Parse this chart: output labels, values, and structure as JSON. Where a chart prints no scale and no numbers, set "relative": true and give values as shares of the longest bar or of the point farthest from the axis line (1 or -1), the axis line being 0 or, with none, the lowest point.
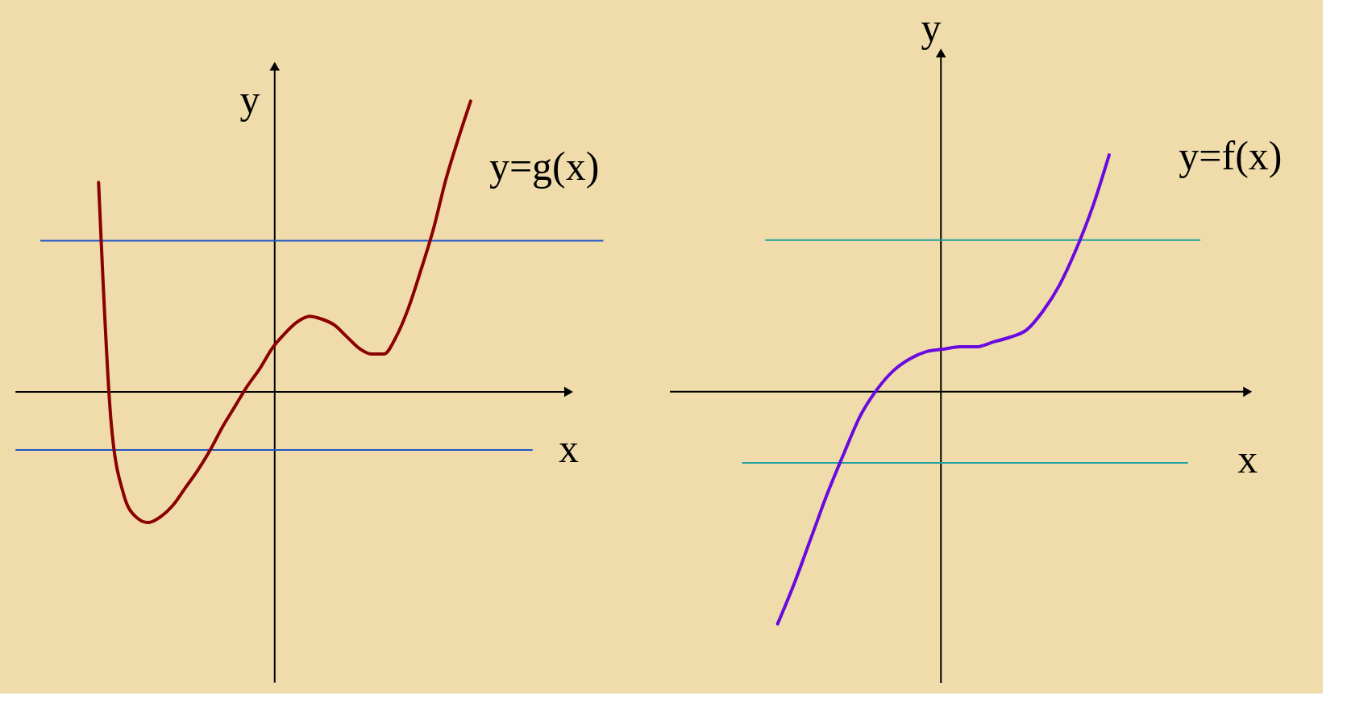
{
  "chart_data": [
    {
      "type": "line",
      "relative": true,
      "xlabel": "x",
      "ylabel": "y",
      "categories": [
        null,
        null,
        null,
        null,
        null,
        null,
        null,
        null,
        null,
        null,
        null,
        null,
        null,
        null,
        null,
        null,
        null,
        null,
        null,
        null,
        null,
        null,
        null,
        null,
        null,
        null,
        null,
        null,
        null,
        null,
        null
      ],
      "series": [
        {
          "name": "y=g(x)",
          "color": "#8b0000",
          "values": [
            0.72,
            -0.1,
            -0.35,
            -0.43,
            -0.45,
            -0.43,
            -0.39,
            -0.33,
            -0.27,
            -0.2,
            -0.12,
            -0.05,
            0.02,
            0.08,
            0.15,
            0.2,
            0.24,
            0.26,
            0.25,
            0.23,
            0.19,
            0.15,
            0.13,
            0.13,
            0.19,
            0.29,
            0.42,
            0.56,
            0.73,
            0.87,
            1
          ]
        }
      ],
      "ref_lines": [
        {
          "axis": "y",
          "value": 0.52,
          "color": "#1f55c8"
        },
        {
          "axis": "y",
          "value": -0.2,
          "color": "#1f55c8"
        }
      ]
    },
    {
      "type": "line",
      "relative": true,
      "xlabel": "x",
      "ylabel": "y",
      "categories": [
        null,
        null,
        null,
        null,
        null,
        null,
        null,
        null,
        null,
        null,
        null,
        null,
        null,
        null,
        null,
        null,
        null,
        null,
        null,
        null,
        null
      ],
      "series": [
        {
          "name": "y=f(x)",
          "color": "#6a0adf",
          "values": [
            -0.98,
            -0.81,
            -0.62,
            -0.43,
            -0.26,
            -0.1,
            0.01,
            0.09,
            0.14,
            0.17,
            0.18,
            0.19,
            0.19,
            0.21,
            0.23,
            0.26,
            0.34,
            0.45,
            0.6,
            0.78,
            1
          ]
        }
      ],
      "ref_lines": [
        {
          "axis": "y",
          "value": 0.64,
          "color": "#20a0a0"
        },
        {
          "axis": "y",
          "value": -0.3,
          "color": "#20a0a0"
        }
      ]
    }
  ]
}
